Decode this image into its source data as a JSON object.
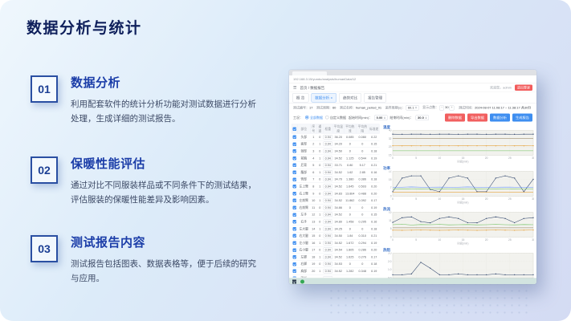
{
  "slide": {
    "title": "数据分析与统计",
    "sections": [
      {
        "num": "01",
        "heading": "数据分析",
        "body": "利用配套软件的统计分析功能对测试数据进行分析处理，生成详细的测试报告。"
      },
      {
        "num": "02",
        "heading": "保暖性能评估",
        "body": "通过对比不同服装样品或不同条件下的测试结果，评估服装的保暖性能差异及影响因素。"
      },
      {
        "num": "03",
        "heading": "测试报告内容",
        "body": "测试报告包括图表、数据表格等，便于后续的研究与应用。"
      }
    ]
  },
  "app": {
    "url": "192.168.3.15/yundu/analysis/humanData/12",
    "breadcrumb": "首页 / 数据报告",
    "user_text": "欢迎您，admin",
    "logout_label": "退出登录",
    "tabs": [
      {
        "label": "概 览",
        "active": false
      },
      {
        "label": "数据分析 ×",
        "active": true
      },
      {
        "label": "趋势对比",
        "active": false
      },
      {
        "label": "报告管理",
        "active": false
      }
    ],
    "meta": [
      {
        "label": "测试编号：",
        "value": "17",
        "type": "plain"
      },
      {
        "label": "测试周期：",
        "value": "60",
        "type": "plain"
      },
      {
        "label": "测试名称：",
        "value": "human_period_01",
        "type": "plain"
      },
      {
        "label": "采样周期(s)：",
        "value": "60.1",
        "type": "box"
      },
      {
        "label": "显示点数：",
        "value": "30",
        "type": "stepper"
      },
      {
        "label": "测试时间：",
        "value": "2024-08-07 11:08:17 ~ 11:38:17 共",
        "highlight": "30",
        "suffix": "分",
        "type": "time"
      }
    ],
    "controls": {
      "group_label": "工况：",
      "radio_all": "全部数据",
      "radio_custom": "自定义数据",
      "start_label": "起始时间(min)：",
      "start_value": "0.00",
      "end_label": "结束时间(min)：",
      "end_value": "30.0",
      "buttons": [
        {
          "label": "删除数据",
          "color": "red"
        },
        {
          "label": "导出数据",
          "color": "red"
        },
        {
          "label": "数据分析",
          "color": "blue"
        },
        {
          "label": "生成报告",
          "color": "blue"
        }
      ]
    },
    "table": {
      "headers": [
        "部位",
        "序号",
        "通道",
        "权重",
        "平均温度",
        "平均热流",
        "平均热阻",
        "标准差"
      ],
      "rows": [
        [
          "头部",
          "1",
          "0",
          "0.94",
          "36.20",
          "0.085",
          "0.080",
          "0.22"
        ],
        [
          "面部",
          "2",
          "1",
          "0.94",
          "34.20",
          "0",
          "0",
          "0.15"
        ],
        [
          "颈部",
          "3",
          "0",
          "0.94",
          "34.50",
          "0",
          "0",
          "0.18"
        ],
        [
          "前胸",
          "4",
          "1",
          "0.94",
          "34.52",
          "1.125",
          "0.544",
          "0.19"
        ],
        [
          "后背",
          "5",
          "0",
          "0.94",
          "33.71",
          "0.80",
          "5.17",
          "0.21"
        ],
        [
          "腹部",
          "6",
          "1",
          "0.94",
          "34.52",
          "1.62",
          "2.85",
          "0.16"
        ],
        [
          "臀部",
          "7",
          "0",
          "0.94",
          "34.70",
          "1.380",
          "0.386",
          "0.18"
        ],
        [
          "左上臂",
          "8",
          "1",
          "0.94",
          "34.52",
          "1.645",
          "0.503",
          "0.20"
        ],
        [
          "右上臂",
          "9",
          "0",
          "0.94",
          "34.83",
          "13.804",
          "0.488",
          "0.20"
        ],
        [
          "左前臂",
          "10",
          "1",
          "0.94",
          "34.52",
          "11.862",
          "0.392",
          "0.17"
        ],
        [
          "右前臂",
          "11",
          "0",
          "0.94",
          "34.86",
          "0",
          "0",
          "0.19"
        ],
        [
          "左手",
          "12",
          "1",
          "0.94",
          "34.52",
          "0",
          "0",
          "0.15"
        ],
        [
          "右手",
          "13",
          "0",
          "0.94",
          "34.80",
          "1.458",
          "0.295",
          "0.16"
        ],
        [
          "左大腿",
          "14",
          "1",
          "0.94",
          "34.25",
          "0",
          "0",
          "0.18"
        ],
        [
          "右大腿",
          "15",
          "0",
          "0.94",
          "34.50",
          "1.84",
          "0.310",
          "0.21"
        ],
        [
          "左小腿",
          "16",
          "1",
          "0.94",
          "34.52",
          "1.672",
          "0.294",
          "0.19"
        ],
        [
          "右小腿",
          "17",
          "0",
          "0.94",
          "34.54",
          "1.805",
          "0.286",
          "0.20"
        ],
        [
          "左脚",
          "18",
          "1",
          "0.94",
          "34.52",
          "1.625",
          "0.276",
          "0.17"
        ],
        [
          "右脚",
          "19",
          "0",
          "0.94",
          "34.53",
          "0",
          "0",
          "0.18"
        ],
        [
          "肩部",
          "20",
          "1",
          "0.94",
          "34.52",
          "1.282",
          "0.348",
          "0.19"
        ],
        [
          "腰部",
          "21",
          "0",
          "0.94",
          "34.50",
          "1.563",
          "0.254",
          "0.16"
        ]
      ]
    }
  },
  "chart_data": [
    {
      "type": "line",
      "title": "温度",
      "xlabel": "时间(min)",
      "ylim": [
        15,
        40
      ],
      "x": [
        0,
        2,
        4,
        6,
        8,
        10,
        12,
        14,
        16,
        18,
        20,
        22,
        24,
        26,
        28,
        30
      ],
      "series": [
        {
          "name": "平均皮温",
          "color": "#34496f",
          "markers": true,
          "values": [
            36.2,
            36.1,
            36.2,
            36.2,
            36.1,
            36.2,
            36.2,
            36.1,
            36.2,
            36.2,
            36.1,
            36.2,
            36.2,
            36.1,
            36.2,
            36.2
          ]
        },
        {
          "name": "目标温度",
          "color": "#8d7855",
          "markers": false,
          "values": [
            32,
            32,
            32,
            32,
            32,
            32,
            32,
            32,
            32,
            32,
            32,
            32,
            32,
            32,
            32,
            32
          ]
        },
        {
          "name": "环境温度",
          "color": "#e5a23c",
          "markers": true,
          "values": [
            24.6,
            24.5,
            24.5,
            24.6,
            24.5,
            24.5,
            24.6,
            24.5,
            24.5,
            24.6,
            24.5,
            24.5,
            24.6,
            24.5,
            24.5,
            24.6
          ]
        },
        {
          "name": "环境湿度",
          "color": "#6cbf5a",
          "markers": false,
          "values": [
            19.5,
            19.5,
            19.5,
            19.5,
            19.5,
            19.5,
            19.5,
            19.5,
            19.5,
            19.5,
            19.5,
            19.5,
            19.5,
            19.5,
            19.5,
            19.5
          ]
        }
      ]
    },
    {
      "type": "line",
      "title": "功率",
      "xlabel": "时间(min)",
      "ylim": [
        0,
        22
      ],
      "x": [
        0,
        2,
        4,
        6,
        8,
        10,
        12,
        14,
        16,
        18,
        20,
        22,
        24,
        26,
        28,
        30
      ],
      "series": [
        {
          "name": "加热功率",
          "color": "#34496f",
          "markers": true,
          "values": [
            4,
            16,
            18,
            18,
            6,
            4,
            16,
            18,
            16,
            4,
            4,
            16,
            18,
            16,
            4,
            15
          ]
        },
        {
          "name": "对流散热",
          "color": "#5b8ff9",
          "markers": false,
          "values": [
            8,
            8,
            8.2,
            8,
            8,
            8.1,
            8,
            8,
            8.2,
            8,
            8,
            8,
            8.1,
            8,
            8,
            8
          ]
        },
        {
          "name": "辐射散热",
          "color": "#6cbf5a",
          "markers": false,
          "values": [
            6.4,
            6.5,
            6.4,
            6.5,
            6.4,
            6.5,
            6.4,
            6.5,
            6.4,
            6.5,
            6.4,
            6.5,
            6.4,
            6.5,
            6.4,
            6.5
          ]
        },
        {
          "name": "传导散热",
          "color": "#e5a23c",
          "markers": false,
          "values": [
            3.5,
            3.5,
            3.5,
            3.5,
            3.5,
            3.5,
            3.5,
            3.5,
            3.5,
            3.5,
            3.5,
            3.5,
            3.5,
            3.5,
            3.5,
            3.5
          ]
        }
      ]
    },
    {
      "type": "line",
      "title": "热流",
      "xlabel": "时间(min)",
      "ylim": [
        0,
        16
      ],
      "x": [
        0,
        2,
        4,
        6,
        8,
        10,
        12,
        14,
        16,
        18,
        20,
        22,
        24,
        26,
        28,
        30
      ],
      "series": [
        {
          "name": "总热流",
          "color": "#34496f",
          "markers": true,
          "values": [
            9.5,
            12.5,
            13,
            10,
            9.2,
            12,
            13,
            12,
            9.3,
            9.2,
            12,
            13,
            12,
            9.3,
            12,
            12.5
          ]
        },
        {
          "name": "蒸发热流",
          "color": "#6cbf5a",
          "markers": false,
          "values": [
            8,
            8.3,
            7.8,
            8.1,
            8,
            8.2,
            7.9,
            8,
            8.1,
            7.9,
            8,
            8.2,
            8,
            7.9,
            8.1,
            8
          ]
        },
        {
          "name": "干热流",
          "color": "#e5a23c",
          "markers": true,
          "values": [
            4.5,
            4.4,
            4.5,
            4.6,
            4.5,
            4.4,
            4.5,
            4.6,
            4.5,
            4.4,
            4.5,
            4.6,
            4.5,
            4.4,
            4.5,
            4.6
          ]
        },
        {
          "name": "基准热流",
          "color": "#8d7855",
          "markers": false,
          "values": [
            6,
            6,
            6,
            6,
            6,
            6,
            6,
            6,
            6,
            6,
            6,
            6,
            6,
            6,
            6,
            6
          ]
        }
      ]
    },
    {
      "type": "line",
      "title": "热阻",
      "xlabel": "时间(min)",
      "ylim": [
        0,
        3
      ],
      "x": [
        0,
        2,
        4,
        6,
        8,
        10,
        12,
        14,
        16,
        18,
        20,
        22,
        24,
        26,
        28,
        30
      ],
      "series": [
        {
          "name": "热阻值",
          "color": "#34496f",
          "markers": true,
          "values": [
            0.4,
            0.4,
            0.5,
            1.9,
            1.2,
            0.4,
            0.4,
            0.5,
            0.4,
            0.4,
            0.4,
            0.5,
            0.4,
            0.4,
            0.4,
            0.4
          ]
        }
      ]
    }
  ]
}
